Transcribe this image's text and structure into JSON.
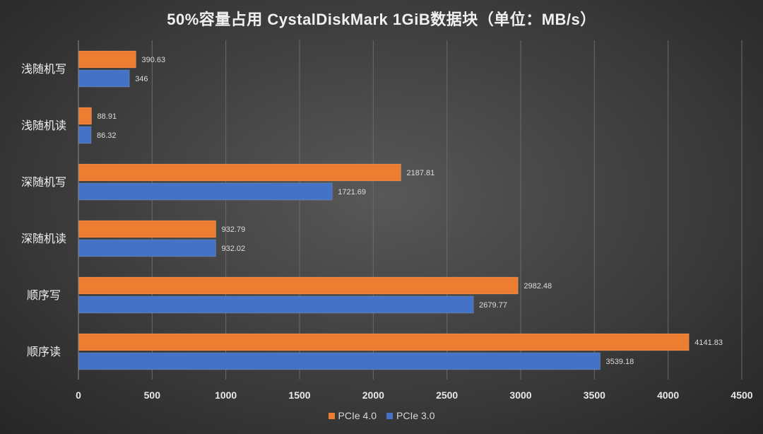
{
  "chart_data": {
    "type": "bar",
    "orientation": "horizontal",
    "title": "50%容量占用   CystalDiskMark 1GiB数据块（单位：MB/s）",
    "categories": [
      "浅随机写",
      "浅随机读",
      "深随机写",
      "深随机读",
      "顺序写",
      "顺序读"
    ],
    "series": [
      {
        "name": "PCIe 4.0",
        "color": "#ed7d31",
        "values": [
          390.63,
          88.91,
          2187.81,
          932.79,
          2982.48,
          4141.83
        ]
      },
      {
        "name": "PCIe 3.0",
        "color": "#4472c4",
        "values": [
          346,
          86.32,
          1721.69,
          932.02,
          2679.77,
          3539.18
        ]
      }
    ],
    "value_labels": [
      [
        "390.63",
        "88.91",
        "2187.81",
        "932.79",
        "2982.48",
        "4141.83"
      ],
      [
        "346",
        "86.32",
        "1721.69",
        "932.02",
        "2679.77",
        "3539.18"
      ]
    ],
    "xlim": [
      0,
      4500
    ],
    "xticks": [
      "0",
      "500",
      "1000",
      "1500",
      "2000",
      "2500",
      "3000",
      "3500",
      "4000",
      "4500"
    ],
    "grid": true,
    "legend_position": "bottom"
  }
}
